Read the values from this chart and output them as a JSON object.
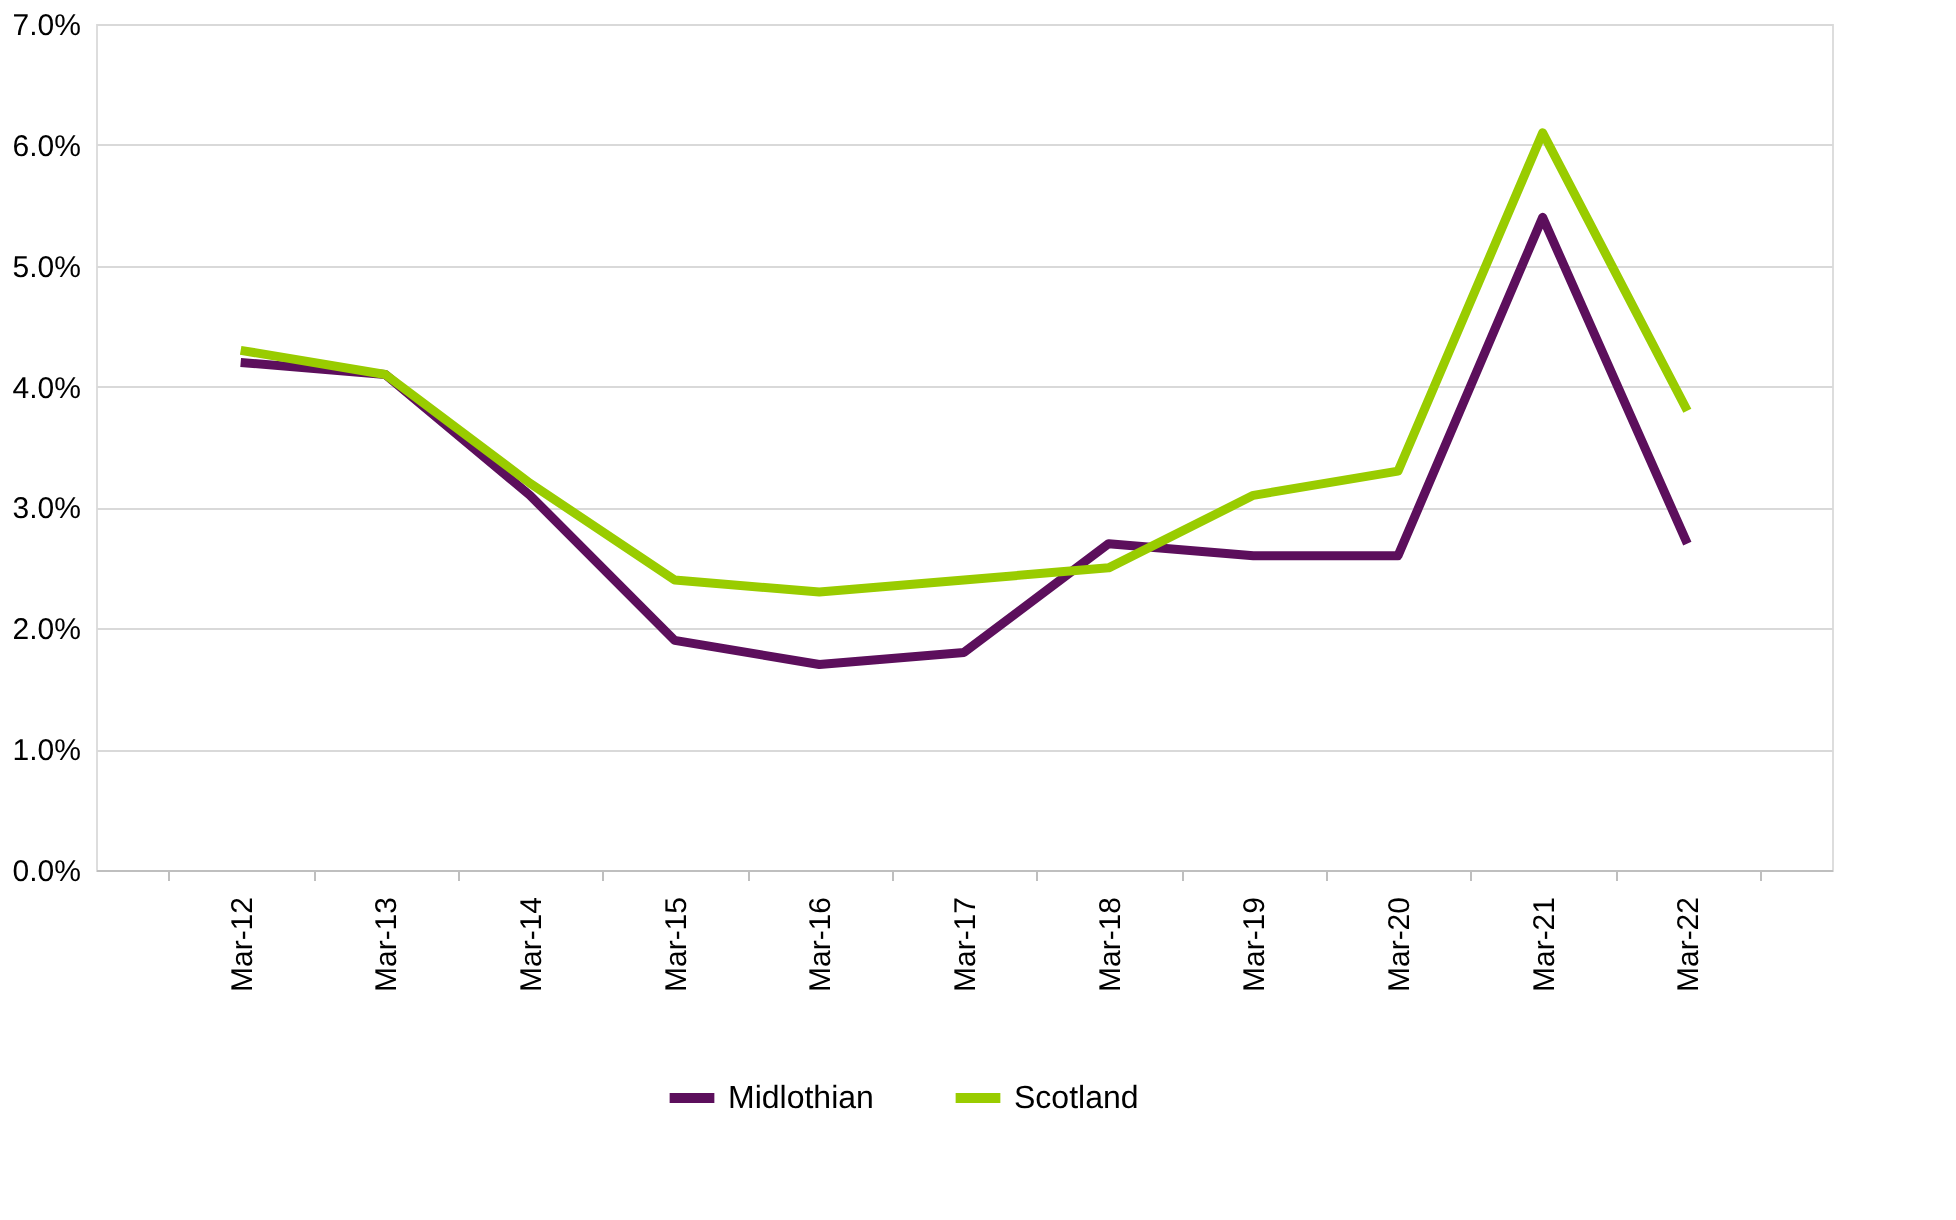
{
  "chart_data": {
    "type": "line",
    "categories": [
      "Mar-12",
      "Mar-13",
      "Mar-14",
      "Mar-15",
      "Mar-16",
      "Mar-17",
      "Mar-18",
      "Mar-19",
      "Mar-20",
      "Mar-21",
      "Mar-22"
    ],
    "series": [
      {
        "name": "Midlothian",
        "color": "#5c0f5c",
        "values": [
          4.2,
          4.1,
          3.1,
          1.9,
          1.7,
          1.8,
          2.7,
          2.6,
          2.6,
          5.4,
          2.7
        ]
      },
      {
        "name": "Scotland",
        "color": "#99cc00",
        "values": [
          4.3,
          4.1,
          3.2,
          2.4,
          2.3,
          2.4,
          2.5,
          3.1,
          3.3,
          6.1,
          3.8
        ]
      }
    ],
    "ylim": [
      0,
      7
    ],
    "yticks": [
      {
        "value": 0,
        "label": "0.0%"
      },
      {
        "value": 1,
        "label": "1.0%"
      },
      {
        "value": 2,
        "label": "2.0%"
      },
      {
        "value": 3,
        "label": "3.0%"
      },
      {
        "value": 4,
        "label": "4.0%"
      },
      {
        "value": 5,
        "label": "5.0%"
      },
      {
        "value": 6,
        "label": "6.0%"
      },
      {
        "value": 7,
        "label": "7.0%"
      }
    ],
    "grid": "y",
    "legend": "bottom",
    "marker": "none",
    "line_style": "solid"
  }
}
